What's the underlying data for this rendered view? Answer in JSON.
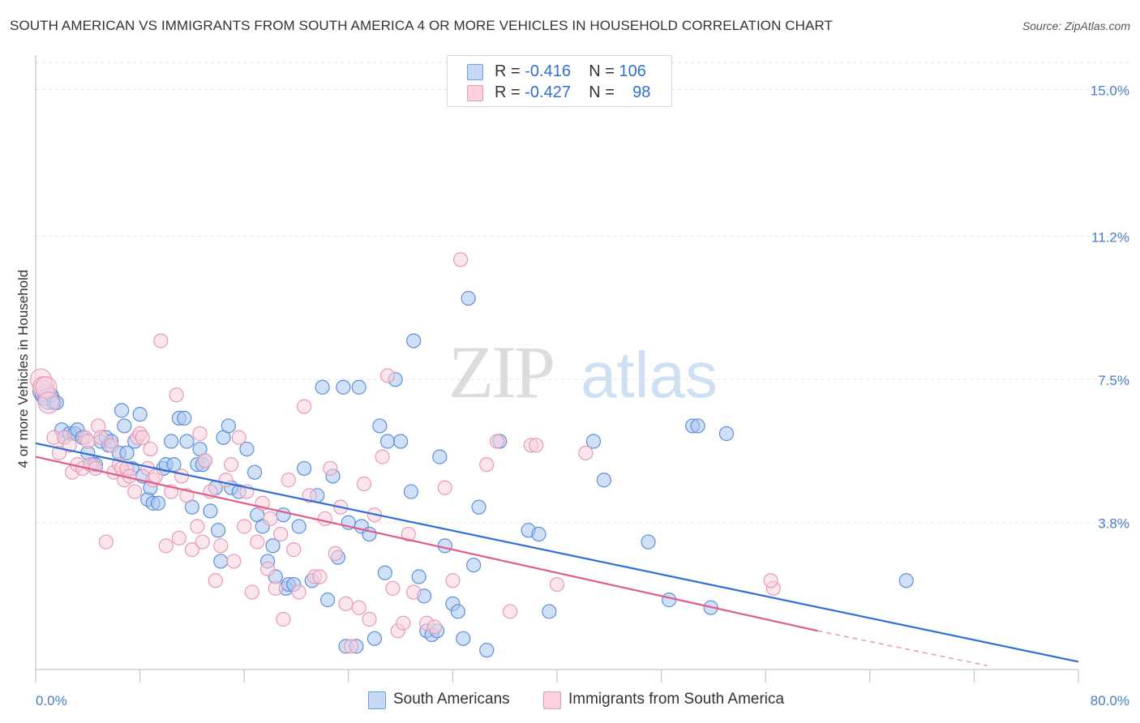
{
  "title": "SOUTH AMERICAN VS IMMIGRANTS FROM SOUTH AMERICA 4 OR MORE VEHICLES IN HOUSEHOLD CORRELATION CHART",
  "source": "Source: ZipAtlas.com",
  "watermark": {
    "zip": "ZIP",
    "atlas": "atlas"
  },
  "legend": {
    "rows": [
      {
        "r_label": "R = ",
        "r_value": "-0.416",
        "n_label": "N = ",
        "n_value": "106",
        "color": "#a9c6f0"
      },
      {
        "r_label": "R = ",
        "r_value": "-0.427",
        "n_label": "N = ",
        "n_value": "98",
        "color": "#f5b5c8"
      }
    ]
  },
  "bottom_legend": [
    {
      "label": "South Americans",
      "color": "#a9c6f0"
    },
    {
      "label": "Immigrants from South America",
      "color": "#f5b5c8"
    }
  ],
  "chart_data": {
    "type": "scatter",
    "title": "SOUTH AMERICAN VS IMMIGRANTS FROM SOUTH AMERICA 4 OR MORE VEHICLES IN HOUSEHOLD CORRELATION CHART",
    "xlabel": "",
    "ylabel": "4 or more Vehicles in Household",
    "xlim": [
      0,
      80
    ],
    "ylim": [
      0,
      15.7
    ],
    "x_tick_labels": [
      "0.0%",
      "80.0%"
    ],
    "y_ticks": [
      3.8,
      7.5,
      11.2,
      15.0
    ],
    "y_tick_labels": [
      "3.8%",
      "7.5%",
      "11.2%",
      "15.0%"
    ],
    "grid": true,
    "legend_position": "top-center",
    "series": [
      {
        "name": "South Americans",
        "color": "#6a9fe0",
        "fill": "#a9c6f0",
        "trend": {
          "x1": 0,
          "y1": 5.85,
          "x2": 80,
          "y2": 0.2
        },
        "points": [
          [
            0.6,
            7.2
          ],
          [
            0.8,
            7.1
          ],
          [
            1.0,
            7.0
          ],
          [
            1.2,
            7.1
          ],
          [
            1.4,
            6.9
          ],
          [
            1.6,
            6.9
          ],
          [
            2.0,
            6.2
          ],
          [
            2.2,
            6.0
          ],
          [
            2.6,
            6.1
          ],
          [
            3.0,
            6.1
          ],
          [
            3.2,
            6.2
          ],
          [
            3.6,
            6.0
          ],
          [
            4.0,
            5.6
          ],
          [
            4.4,
            5.3
          ],
          [
            4.6,
            5.3
          ],
          [
            5.0,
            5.9
          ],
          [
            5.4,
            6.0
          ],
          [
            5.6,
            5.8
          ],
          [
            5.8,
            5.9
          ],
          [
            6.4,
            5.6
          ],
          [
            6.6,
            6.7
          ],
          [
            6.8,
            6.3
          ],
          [
            7.0,
            5.6
          ],
          [
            7.4,
            5.2
          ],
          [
            7.6,
            5.9
          ],
          [
            8.0,
            6.6
          ],
          [
            8.2,
            5.0
          ],
          [
            8.6,
            4.4
          ],
          [
            8.8,
            4.7
          ],
          [
            9.0,
            4.3
          ],
          [
            9.4,
            4.3
          ],
          [
            9.8,
            5.2
          ],
          [
            10.0,
            5.3
          ],
          [
            10.4,
            5.9
          ],
          [
            10.6,
            5.3
          ],
          [
            11.0,
            6.5
          ],
          [
            11.4,
            6.5
          ],
          [
            11.6,
            5.9
          ],
          [
            12.0,
            4.2
          ],
          [
            12.4,
            5.3
          ],
          [
            12.6,
            5.7
          ],
          [
            12.8,
            5.3
          ],
          [
            13.0,
            5.4
          ],
          [
            13.4,
            4.1
          ],
          [
            13.8,
            4.7
          ],
          [
            14.0,
            3.6
          ],
          [
            14.2,
            2.8
          ],
          [
            14.4,
            6.0
          ],
          [
            14.8,
            6.3
          ],
          [
            15.0,
            4.7
          ],
          [
            15.6,
            4.6
          ],
          [
            16.2,
            5.7
          ],
          [
            16.8,
            5.1
          ],
          [
            17.0,
            4.0
          ],
          [
            17.4,
            3.7
          ],
          [
            17.8,
            2.8
          ],
          [
            18.2,
            3.2
          ],
          [
            18.4,
            2.4
          ],
          [
            19.0,
            4.0
          ],
          [
            19.2,
            2.1
          ],
          [
            19.4,
            2.2
          ],
          [
            19.8,
            2.2
          ],
          [
            20.2,
            3.7
          ],
          [
            20.6,
            5.2
          ],
          [
            21.2,
            2.3
          ],
          [
            21.6,
            4.5
          ],
          [
            22.0,
            7.3
          ],
          [
            22.4,
            1.8
          ],
          [
            22.8,
            5.0
          ],
          [
            23.2,
            2.9
          ],
          [
            23.6,
            7.3
          ],
          [
            23.8,
            0.6
          ],
          [
            24.0,
            3.8
          ],
          [
            24.6,
            0.6
          ],
          [
            24.8,
            7.3
          ],
          [
            25.0,
            3.7
          ],
          [
            25.6,
            3.5
          ],
          [
            26.0,
            0.8
          ],
          [
            26.4,
            6.3
          ],
          [
            26.8,
            2.5
          ],
          [
            27.0,
            5.9
          ],
          [
            27.6,
            7.5
          ],
          [
            28.0,
            5.9
          ],
          [
            28.8,
            4.6
          ],
          [
            29.0,
            8.5
          ],
          [
            29.4,
            2.4
          ],
          [
            29.8,
            1.9
          ],
          [
            30.0,
            1.0
          ],
          [
            30.4,
            0.9
          ],
          [
            30.8,
            1.0
          ],
          [
            31.0,
            5.5
          ],
          [
            31.4,
            3.2
          ],
          [
            32.0,
            1.7
          ],
          [
            32.4,
            1.5
          ],
          [
            32.8,
            0.8
          ],
          [
            33.2,
            9.6
          ],
          [
            33.6,
            2.7
          ],
          [
            34.0,
            4.2
          ],
          [
            34.6,
            0.5
          ],
          [
            35.6,
            5.9
          ],
          [
            37.8,
            3.6
          ],
          [
            38.6,
            3.5
          ],
          [
            39.4,
            1.5
          ],
          [
            42.8,
            5.9
          ],
          [
            43.6,
            4.9
          ],
          [
            47.0,
            3.3
          ],
          [
            48.6,
            1.8
          ],
          [
            50.4,
            6.3
          ],
          [
            50.8,
            6.3
          ],
          [
            51.8,
            1.6
          ],
          [
            53.0,
            6.1
          ],
          [
            66.8,
            2.3
          ]
        ]
      },
      {
        "name": "Immigrants from South America",
        "color": "#e05c8a",
        "fill": "#f5b5c8",
        "trend": {
          "x1": 0,
          "y1": 5.5,
          "x2": 60,
          "y2": 1.0
        },
        "trend_dashed_to": {
          "x": 73,
          "y": 0.1
        },
        "points": [
          [
            0.4,
            7.5
          ],
          [
            0.6,
            7.3
          ],
          [
            0.8,
            7.3
          ],
          [
            1.0,
            6.9
          ],
          [
            1.4,
            6.0
          ],
          [
            1.8,
            5.6
          ],
          [
            2.2,
            6.0
          ],
          [
            2.6,
            5.8
          ],
          [
            2.8,
            5.1
          ],
          [
            3.2,
            5.3
          ],
          [
            3.6,
            5.2
          ],
          [
            3.8,
            6.0
          ],
          [
            4.0,
            5.9
          ],
          [
            4.2,
            5.3
          ],
          [
            4.6,
            5.2
          ],
          [
            4.8,
            6.3
          ],
          [
            5.0,
            6.0
          ],
          [
            5.4,
            3.3
          ],
          [
            5.8,
            5.8
          ],
          [
            6.0,
            5.1
          ],
          [
            6.4,
            5.3
          ],
          [
            6.6,
            5.2
          ],
          [
            6.8,
            4.9
          ],
          [
            7.0,
            5.2
          ],
          [
            7.2,
            5.0
          ],
          [
            7.6,
            4.6
          ],
          [
            7.8,
            6.0
          ],
          [
            8.0,
            6.1
          ],
          [
            8.2,
            6.0
          ],
          [
            8.6,
            5.2
          ],
          [
            8.8,
            5.7
          ],
          [
            9.0,
            4.9
          ],
          [
            9.2,
            5.0
          ],
          [
            9.6,
            8.5
          ],
          [
            10.0,
            3.2
          ],
          [
            10.4,
            4.6
          ],
          [
            10.8,
            7.1
          ],
          [
            11.0,
            3.4
          ],
          [
            11.2,
            5.0
          ],
          [
            11.6,
            4.5
          ],
          [
            12.0,
            3.1
          ],
          [
            12.4,
            3.7
          ],
          [
            12.6,
            6.1
          ],
          [
            12.8,
            3.3
          ],
          [
            13.0,
            5.4
          ],
          [
            13.4,
            4.6
          ],
          [
            13.8,
            2.3
          ],
          [
            14.2,
            3.2
          ],
          [
            14.6,
            4.9
          ],
          [
            15.0,
            5.3
          ],
          [
            15.2,
            2.8
          ],
          [
            15.6,
            6.0
          ],
          [
            16.0,
            3.7
          ],
          [
            16.2,
            4.6
          ],
          [
            16.6,
            2.0
          ],
          [
            17.0,
            3.3
          ],
          [
            17.4,
            4.3
          ],
          [
            17.8,
            2.6
          ],
          [
            18.0,
            3.9
          ],
          [
            18.4,
            2.1
          ],
          [
            18.8,
            3.5
          ],
          [
            19.0,
            1.3
          ],
          [
            19.4,
            4.9
          ],
          [
            19.8,
            3.1
          ],
          [
            20.2,
            2.0
          ],
          [
            20.6,
            6.8
          ],
          [
            21.0,
            4.5
          ],
          [
            21.4,
            2.4
          ],
          [
            21.8,
            2.4
          ],
          [
            22.2,
            3.9
          ],
          [
            22.6,
            5.2
          ],
          [
            23.0,
            3.0
          ],
          [
            23.4,
            4.2
          ],
          [
            23.8,
            1.7
          ],
          [
            24.2,
            0.6
          ],
          [
            24.8,
            1.6
          ],
          [
            25.2,
            4.8
          ],
          [
            25.6,
            1.3
          ],
          [
            26.0,
            4.0
          ],
          [
            26.6,
            5.5
          ],
          [
            27.0,
            7.6
          ],
          [
            27.4,
            2.1
          ],
          [
            27.8,
            1.0
          ],
          [
            28.2,
            1.2
          ],
          [
            28.6,
            3.5
          ],
          [
            29.0,
            2.0
          ],
          [
            30.0,
            1.2
          ],
          [
            30.6,
            1.1
          ],
          [
            31.4,
            4.7
          ],
          [
            32.0,
            2.3
          ],
          [
            34.6,
            5.3
          ],
          [
            35.4,
            5.9
          ],
          [
            36.4,
            1.5
          ],
          [
            38.0,
            5.8
          ],
          [
            38.4,
            5.8
          ],
          [
            40.0,
            2.2
          ],
          [
            42.2,
            5.6
          ],
          [
            56.6,
            2.1
          ]
        ]
      }
    ],
    "outlier_points_pink": [
      [
        32.6,
        10.6
      ],
      [
        56.4,
        2.3
      ]
    ]
  }
}
